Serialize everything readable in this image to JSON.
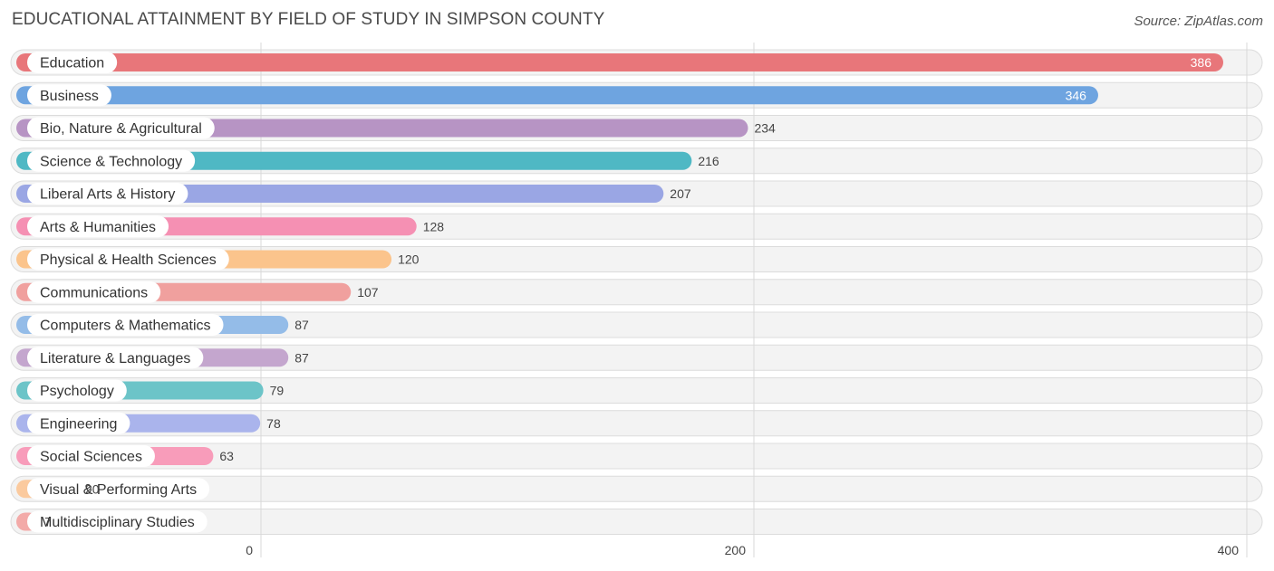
{
  "header": {
    "title": "EDUCATIONAL ATTAINMENT BY FIELD OF STUDY IN SIMPSON COUNTY",
    "source": "Source: ZipAtlas.com"
  },
  "chart_data": {
    "type": "bar",
    "orientation": "horizontal",
    "title": "EDUCATIONAL ATTAINMENT BY FIELD OF STUDY IN SIMPSON COUNTY",
    "xlabel": "",
    "ylabel": "",
    "xlim": [
      0,
      400
    ],
    "ticks": [
      0,
      200,
      400
    ],
    "tick_labels": [
      "0",
      "200",
      "400"
    ],
    "grid": true,
    "categories": [
      "Education",
      "Business",
      "Bio, Nature & Agricultural",
      "Science & Technology",
      "Liberal Arts & History",
      "Arts & Humanities",
      "Physical & Health Sciences",
      "Communications",
      "Computers & Mathematics",
      "Literature & Languages",
      "Psychology",
      "Engineering",
      "Social Sciences",
      "Visual & Performing Arts",
      "Multidisciplinary Studies"
    ],
    "values": [
      386,
      346,
      234,
      216,
      207,
      128,
      120,
      107,
      87,
      87,
      79,
      78,
      63,
      20,
      7
    ],
    "value_labels": [
      "386",
      "346",
      "234",
      "216",
      "207",
      "128",
      "120",
      "107",
      "87",
      "87",
      "79",
      "78",
      "63",
      "20",
      "7"
    ],
    "colors": [
      "#e8767a",
      "#6ea4e0",
      "#b794c4",
      "#4fb8c4",
      "#9aa6e4",
      "#f590b3",
      "#fbc48c",
      "#f0a09e",
      "#94bce8",
      "#c4a6ce",
      "#6cc4c8",
      "#aab4ec",
      "#f89cba",
      "#fbca9e",
      "#f3aaa8"
    ]
  }
}
